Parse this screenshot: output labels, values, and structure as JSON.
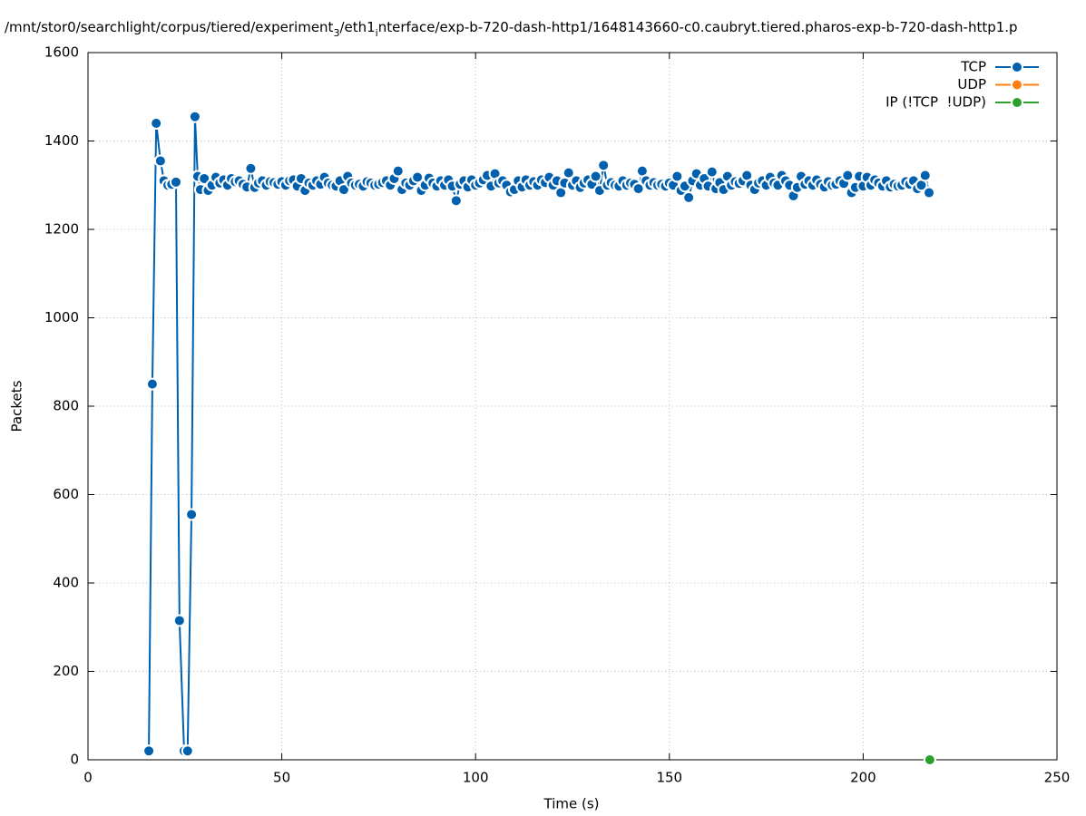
{
  "chart_data": {
    "type": "line",
    "title_parts": [
      {
        "text": "/mnt/stor0/searchlight/corpus/tiered/experiment",
        "sub": false
      },
      {
        "text": "3",
        "sub": true
      },
      {
        "text": "/eth1",
        "sub": false
      },
      {
        "text": "i",
        "sub": true
      },
      {
        "text": "nterface/exp-b-720-dash-http1/1648143660-c0.caubryt.tiered.pharos-exp-b-720-dash-http1.p",
        "sub": false
      }
    ],
    "xlabel": "Time (s)",
    "ylabel": "Packets",
    "xlim": [
      0,
      250
    ],
    "ylim": [
      0,
      1600
    ],
    "xticks": [
      0,
      50,
      100,
      150,
      200,
      250
    ],
    "yticks": [
      0,
      200,
      400,
      600,
      800,
      1000,
      1200,
      1400,
      1600
    ],
    "grid": true,
    "legend": "upper right",
    "series": [
      {
        "name": "TCP",
        "color": "#0060ad",
        "x": [
          15.7,
          16.6,
          17.6,
          18.7,
          19.6,
          20.6,
          21.6,
          22.7,
          23.6,
          24.8,
          25.7,
          26.7,
          27.6,
          28.3,
          29,
          30,
          31,
          32,
          33,
          34,
          35,
          36,
          37,
          38,
          39,
          40,
          41,
          42,
          43,
          44,
          45,
          46,
          47,
          48,
          49,
          50,
          51,
          52,
          53,
          54,
          55,
          56,
          57,
          58,
          59,
          60,
          61,
          62,
          63,
          64,
          65,
          66,
          67,
          68,
          69,
          70,
          71,
          72,
          73,
          74,
          75,
          76,
          77,
          78,
          79,
          80,
          81,
          82,
          83,
          84,
          85,
          86,
          87,
          88,
          89,
          90,
          91,
          92,
          93,
          94,
          95,
          96,
          97,
          98,
          99,
          100,
          101,
          102,
          103,
          104,
          105,
          106,
          107,
          108,
          109,
          110,
          111,
          112,
          113,
          114,
          115,
          116,
          117,
          118,
          119,
          120,
          121,
          122,
          123,
          124,
          125,
          126,
          127,
          128,
          129,
          130,
          131,
          132,
          133,
          134,
          135,
          136,
          137,
          138,
          139,
          140,
          141,
          142,
          143,
          144,
          145,
          146,
          147,
          148,
          149,
          150,
          151,
          152,
          153,
          154,
          155,
          156,
          157,
          158,
          159,
          160,
          161,
          162,
          163,
          164,
          165,
          166,
          167,
          168,
          169,
          170,
          171,
          172,
          173,
          174,
          175,
          176,
          177,
          178,
          179,
          180,
          181,
          182,
          183,
          184,
          185,
          186,
          187,
          188,
          189,
          190,
          191,
          192,
          193,
          194,
          195,
          196,
          197,
          198,
          199,
          200,
          201,
          202,
          203,
          204,
          205,
          206,
          207,
          208,
          209,
          210,
          211,
          212,
          213,
          214,
          215,
          216,
          217
        ],
        "values": [
          20,
          850,
          1440,
          1355,
          1310,
          1300,
          1302,
          1307,
          315,
          20,
          20,
          555,
          1455,
          1320,
          1290,
          1315,
          1288,
          1300,
          1318,
          1305,
          1312,
          1300,
          1315,
          1308,
          1310,
          1302,
          1296,
          1338,
          1295,
          1305,
          1310,
          1300,
          1308,
          1306,
          1302,
          1308,
          1300,
          1310,
          1312,
          1298,
          1315,
          1288,
          1305,
          1300,
          1310,
          1302,
          1318,
          1305,
          1300,
          1298,
          1310,
          1290,
          1320,
          1305,
          1300,
          1302,
          1298,
          1308,
          1305,
          1300,
          1302,
          1306,
          1310,
          1300,
          1315,
          1332,
          1290,
          1305,
          1300,
          1310,
          1318,
          1288,
          1300,
          1316,
          1305,
          1298,
          1310,
          1300,
          1312,
          1298,
          1265,
          1302,
          1310,
          1296,
          1312,
          1300,
          1305,
          1312,
          1322,
          1298,
          1326,
          1305,
          1310,
          1300,
          1285,
          1290,
          1310,
          1296,
          1312,
          1300,
          1308,
          1300,
          1312,
          1306,
          1318,
          1300,
          1310,
          1283,
          1305,
          1328,
          1300,
          1310,
          1295,
          1305,
          1312,
          1302,
          1320,
          1288,
          1345,
          1300,
          1306,
          1300,
          1298,
          1310,
          1300,
          1305,
          1302,
          1292,
          1332,
          1310,
          1300,
          1306,
          1300,
          1302,
          1298,
          1305,
          1300,
          1320,
          1288,
          1298,
          1272,
          1310,
          1326,
          1300,
          1315,
          1298,
          1330,
          1292,
          1306,
          1290,
          1320,
          1300,
          1308,
          1304,
          1310,
          1322,
          1300,
          1290,
          1305,
          1310,
          1300,
          1318,
          1305,
          1300,
          1322,
          1310,
          1300,
          1276,
          1295,
          1320,
          1302,
          1310,
          1300,
          1312,
          1302,
          1296,
          1308,
          1300,
          1302,
          1310,
          1304,
          1322,
          1283,
          1295,
          1320,
          1298,
          1318,
          1300,
          1312,
          1305,
          1298,
          1310,
          1296,
          1302,
          1298,
          1300,
          1308,
          1302,
          1310,
          1292,
          1300,
          1322,
          1283
        ]
      },
      {
        "name": "UDP",
        "color": "#ff7f0e",
        "x": [],
        "values": []
      },
      {
        "name": "IP (!TCP  !UDP)",
        "color": "#2ca02c",
        "x": [
          217.2
        ],
        "values": [
          0
        ]
      }
    ]
  }
}
